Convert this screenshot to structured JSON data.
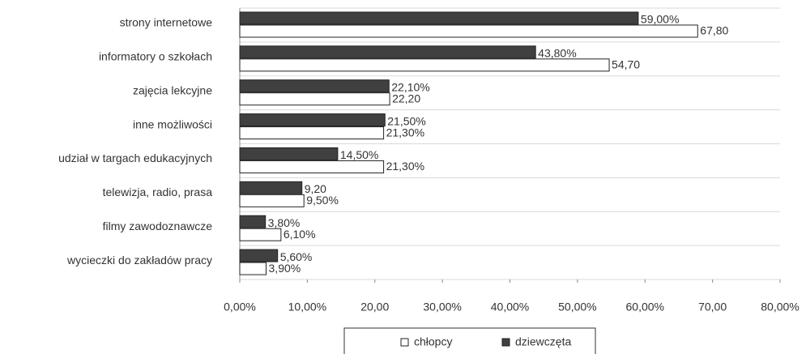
{
  "chart_data": {
    "type": "bar",
    "orientation": "horizontal",
    "categories": [
      "strony internetowe",
      "informatory o szkołach",
      "zajęcia lekcyjne",
      "inne możliwości",
      "udział w targach edukacyjnych",
      "telewizja, radio, prasa",
      "filmy zawodoznawcze",
      "wycieczki do zakładów pracy"
    ],
    "series": [
      {
        "name": "chłopcy",
        "color": "#ffffff",
        "values": [
          67.8,
          54.7,
          22.2,
          21.3,
          21.3,
          9.5,
          6.1,
          3.9
        ],
        "value_labels": [
          "67,80",
          "54,70",
          "22,20",
          "21,30%",
          "21,30%",
          "9,50%",
          "6,10%",
          "3,90%"
        ]
      },
      {
        "name": "dziewczęta",
        "color": "#404040",
        "values": [
          59.0,
          43.8,
          22.1,
          21.5,
          14.5,
          9.2,
          3.8,
          5.6
        ],
        "value_labels": [
          "59,00%",
          "43,80%",
          "22,10%",
          "21,50%",
          "14,50%",
          "9,20",
          "3,80%",
          "5,60%"
        ]
      }
    ],
    "xlim": [
      0,
      80
    ],
    "xticks": [
      {
        "value": 0,
        "label": "0,00%"
      },
      {
        "value": 10,
        "label": "10,00%"
      },
      {
        "value": 20,
        "label": "20,00"
      },
      {
        "value": 30,
        "label": "30,00%"
      },
      {
        "value": 40,
        "label": "40,00%"
      },
      {
        "value": 50,
        "label": "50,00%"
      },
      {
        "value": 60,
        "label": "60,00%"
      },
      {
        "value": 70,
        "label": "70,00"
      },
      {
        "value": 80,
        "label": "80,00%"
      }
    ],
    "grid": true,
    "legend": "bottom"
  }
}
